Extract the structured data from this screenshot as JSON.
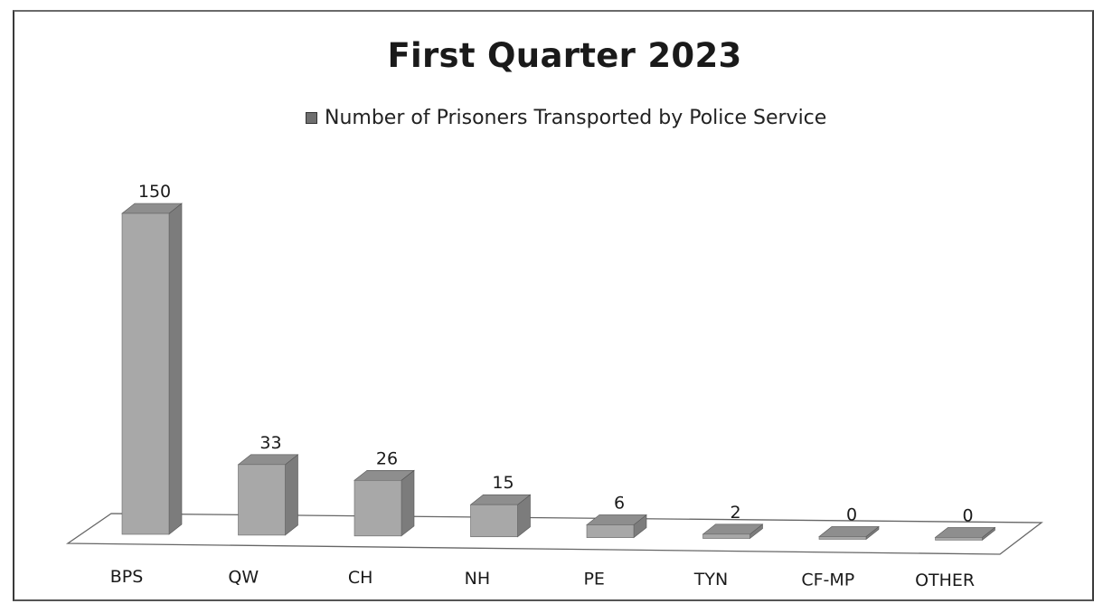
{
  "chart_data": {
    "type": "bar",
    "title": "First Quarter 2023",
    "legend": "Number of Prisoners Transported by Police Service",
    "legend_position": "top",
    "categories": [
      "BPS",
      "QW",
      "CH",
      "NH",
      "PE",
      "TYN",
      "CF-MP",
      "OTHER"
    ],
    "series": [
      {
        "name": "Number of Prisoners Transported by Police Service",
        "values": [
          150,
          33,
          26,
          15,
          6,
          2,
          0,
          0
        ]
      }
    ],
    "data_labels": [
      "150",
      "33",
      "26",
      "15",
      "6",
      "2",
      "0",
      "0"
    ],
    "ylim": [
      0,
      150
    ],
    "grid": false,
    "colors": {
      "bar_front": "#a8a8a8",
      "bar_side": "#7c7c7c",
      "bar_top": "#8e8e8e",
      "legend_swatch": "#6f6f6f"
    }
  }
}
